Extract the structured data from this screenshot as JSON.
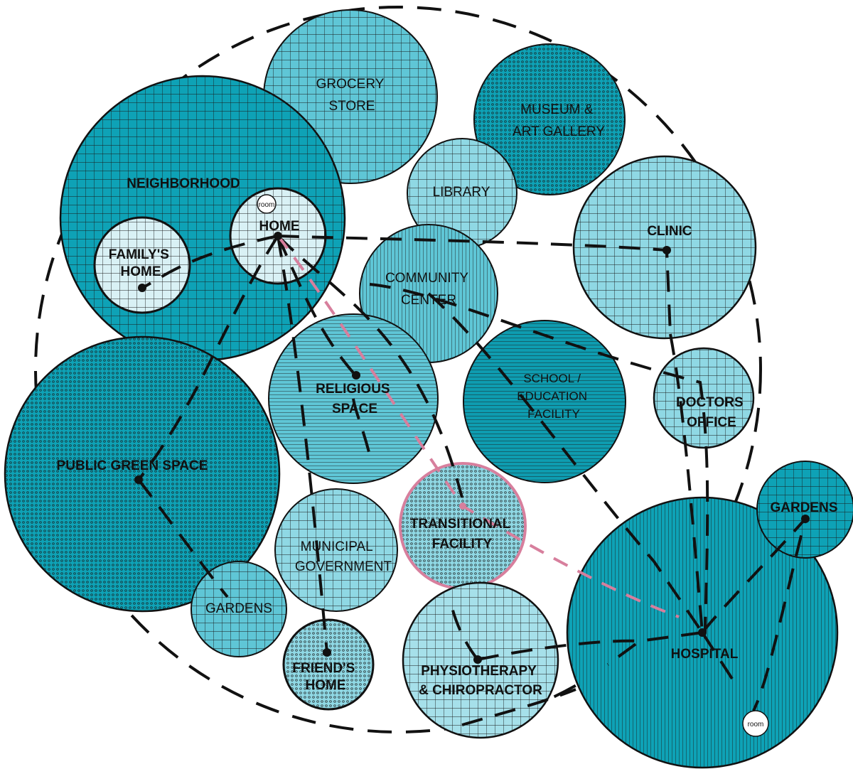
{
  "colors": {
    "teal_dark": "#0ea2b6",
    "teal_mid": "#5fc6d6",
    "teal_light": "#8fd8e4",
    "teal_pale": "#d9f1f5",
    "pink": "#d77f9d",
    "outline": "#111111"
  },
  "places": [
    {
      "id": "grocery",
      "lines": [
        "GROCERY",
        "STORE"
      ]
    },
    {
      "id": "museum",
      "lines": [
        "MUSEUM &",
        "ART GALLERY"
      ]
    },
    {
      "id": "neighborhood",
      "lines": [
        "NEIGHBORHOOD"
      ]
    },
    {
      "id": "library",
      "lines": [
        "LIBRARY"
      ]
    },
    {
      "id": "home",
      "lines": [
        "HOME"
      ]
    },
    {
      "id": "family",
      "lines": [
        "FAMILY'S",
        "HOME"
      ]
    },
    {
      "id": "community",
      "lines": [
        "COMMUNITY",
        "CENTER"
      ]
    },
    {
      "id": "clinic",
      "lines": [
        "CLINIC"
      ]
    },
    {
      "id": "religious",
      "lines": [
        "RELIGIOUS",
        "SPACE"
      ]
    },
    {
      "id": "school",
      "lines": [
        "SCHOOL /",
        "EDUCATION",
        "FACILITY"
      ]
    },
    {
      "id": "doctors",
      "lines": [
        "DOCTORS",
        "OFFICE"
      ]
    },
    {
      "id": "public_green",
      "lines": [
        "PUBLIC GREEN SPACE"
      ]
    },
    {
      "id": "gardens_right",
      "lines": [
        "GARDENS"
      ]
    },
    {
      "id": "transitional",
      "lines": [
        "TRANSITIONAL",
        "FACILITY"
      ]
    },
    {
      "id": "municipal",
      "lines": [
        "MUNICIPAL",
        "GOVERNMENT"
      ]
    },
    {
      "id": "gardens_left",
      "lines": [
        "GARDENS"
      ]
    },
    {
      "id": "hospital",
      "lines": [
        "HOSPITAL"
      ]
    },
    {
      "id": "friends",
      "lines": [
        "FRIEND'S",
        "HOME"
      ]
    },
    {
      "id": "physio",
      "lines": [
        "PHYSIOTHERAPY",
        "& CHIROPRACTOR"
      ]
    }
  ],
  "rooms": [
    {
      "id": "home_room",
      "label": "room"
    },
    {
      "id": "hospital_room",
      "label": "room"
    }
  ]
}
